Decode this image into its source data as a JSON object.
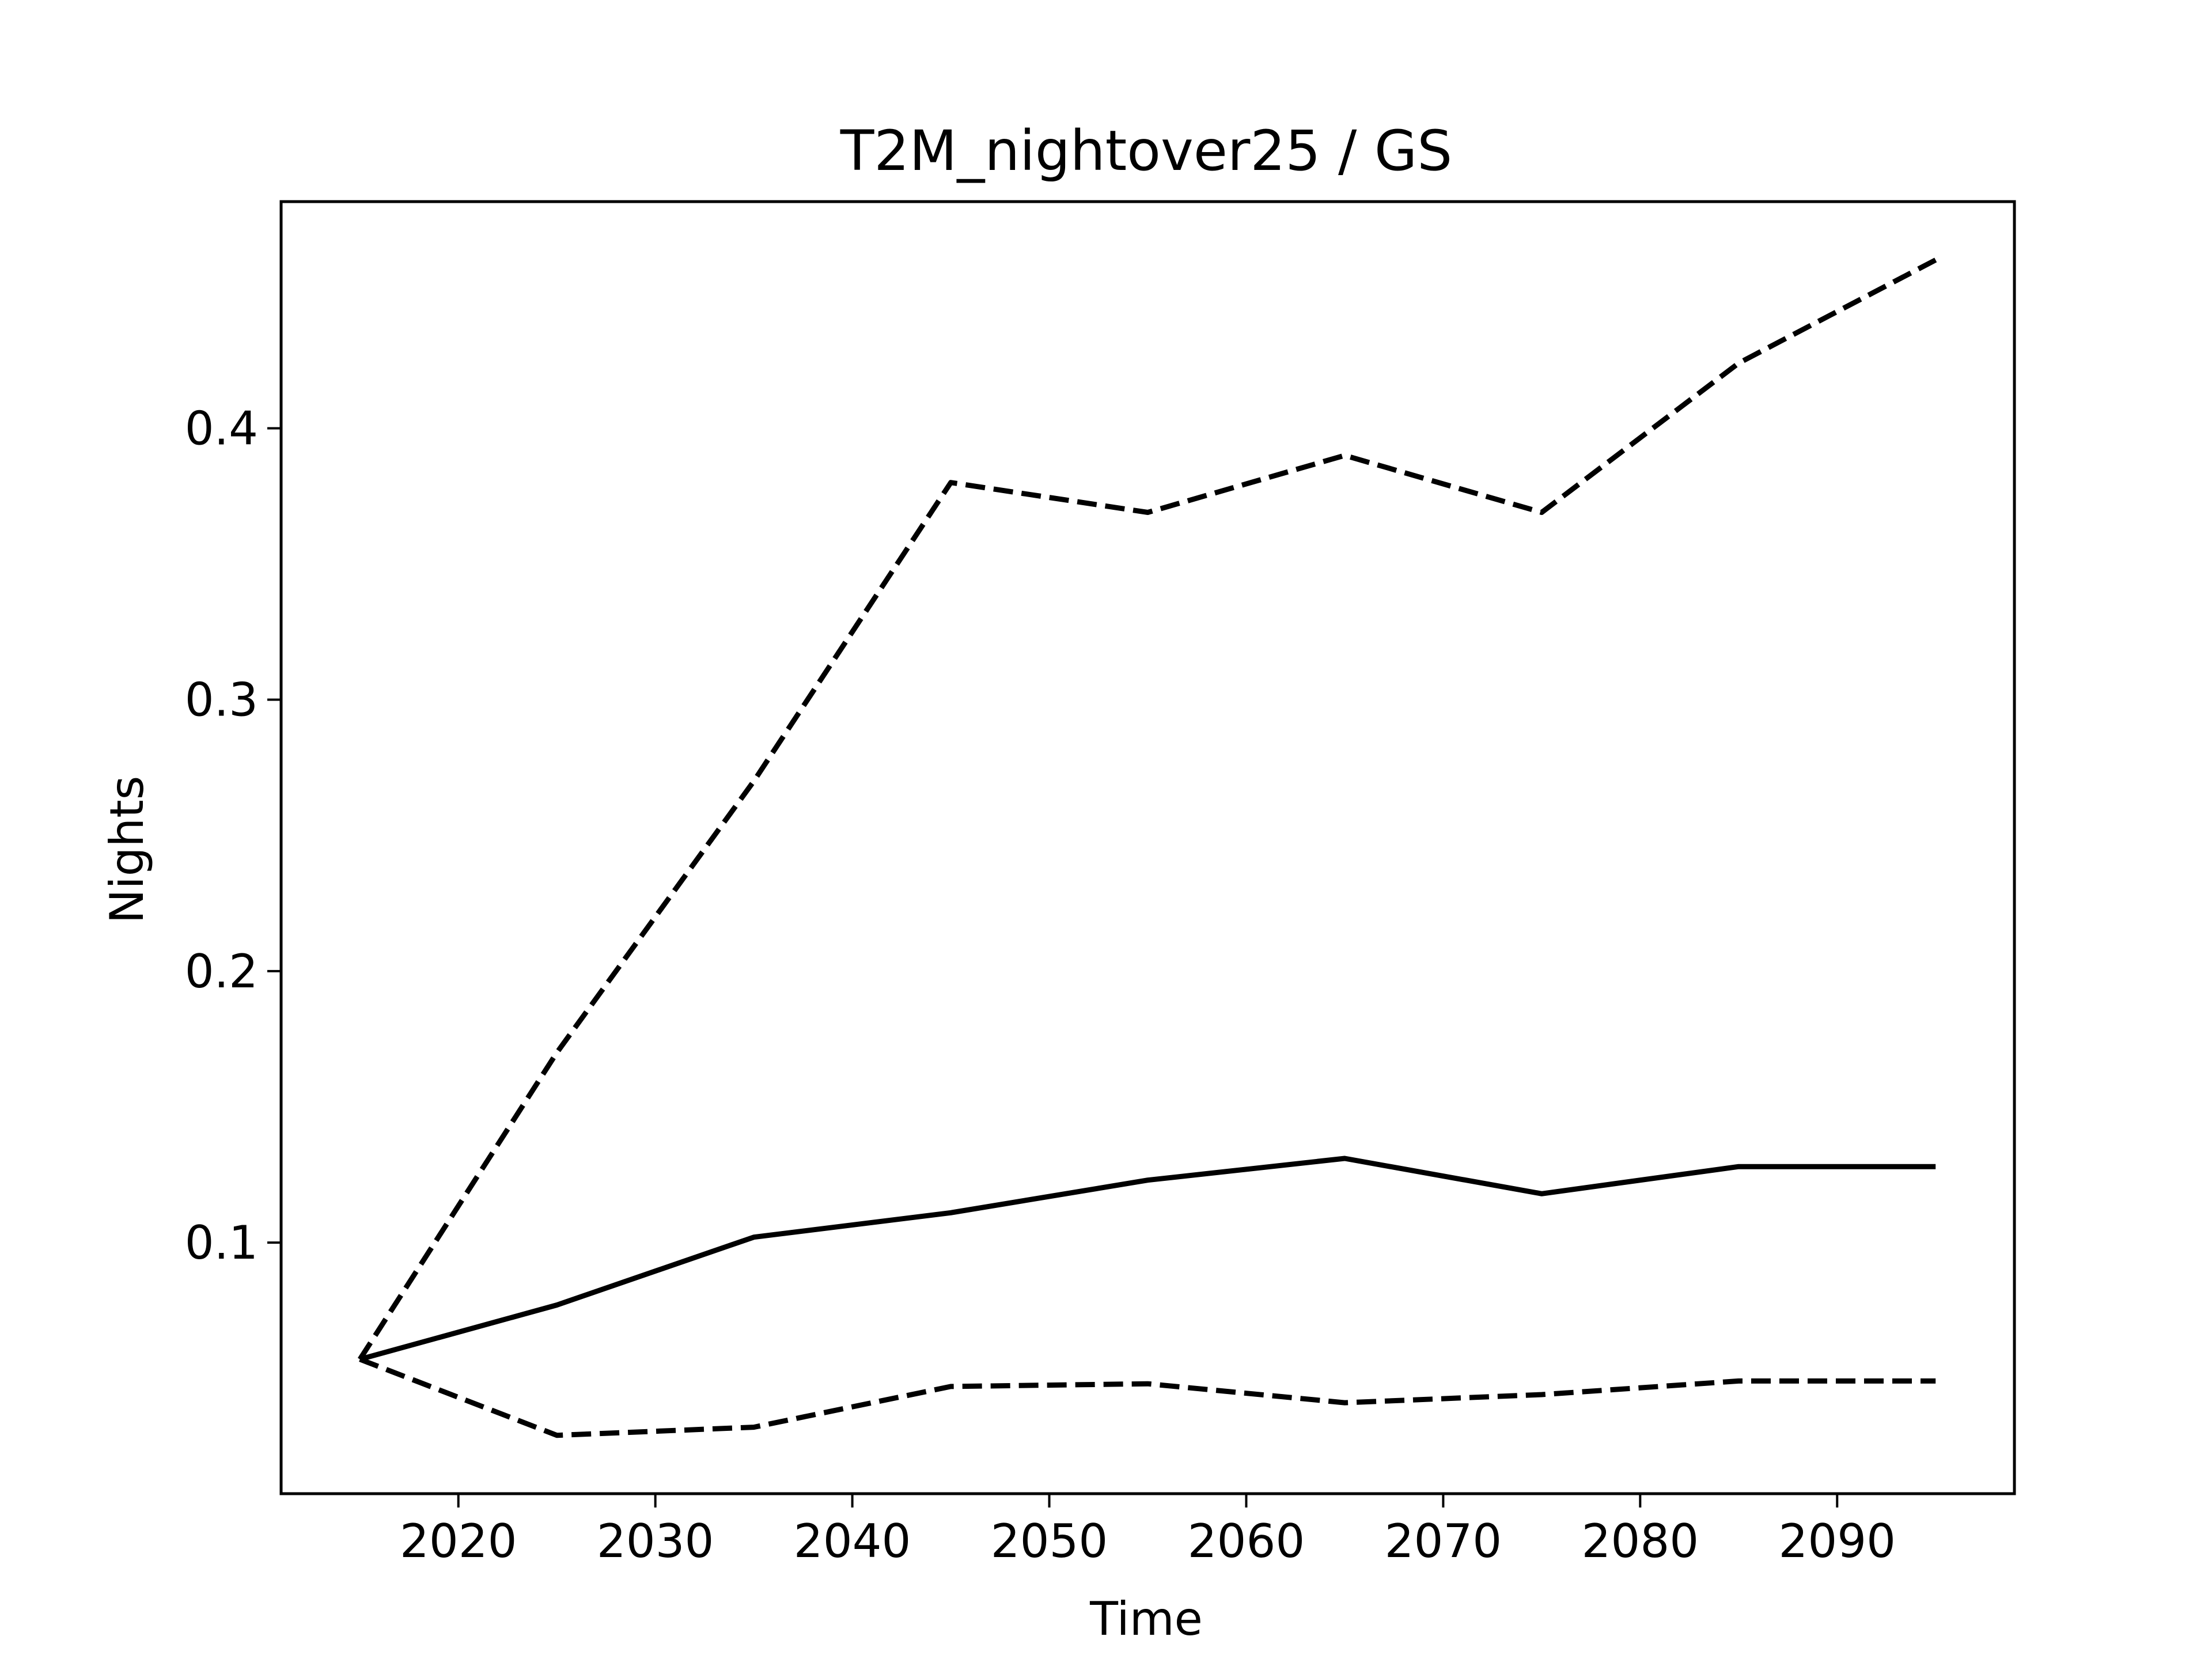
{
  "chart_data": {
    "type": "line",
    "title": "T2M_nightover25 / GS",
    "xlabel": "Time",
    "ylabel": "Nights",
    "xlim": [
      2011,
      2099
    ],
    "ylim": [
      0.0075,
      0.4835
    ],
    "xticks": [
      2020,
      2030,
      2040,
      2050,
      2060,
      2070,
      2080,
      2090
    ],
    "yticks": [
      0.1,
      0.2,
      0.3,
      0.4
    ],
    "ytick_labels": [
      "0.1",
      "0.2",
      "0.3",
      "0.4"
    ],
    "grid": false,
    "x": [
      2015,
      2025,
      2035,
      2045,
      2055,
      2065,
      2075,
      2085,
      2095
    ],
    "series": [
      {
        "style": "dashed",
        "color": "#000000",
        "values": [
          0.057,
          0.17,
          0.27,
          0.38,
          0.369,
          0.39,
          0.369,
          0.424,
          0.462
        ]
      },
      {
        "style": "solid",
        "color": "#000000",
        "values": [
          0.057,
          0.077,
          0.102,
          0.111,
          0.123,
          0.131,
          0.118,
          0.128,
          0.128
        ]
      },
      {
        "style": "dashed",
        "color": "#000000",
        "values": [
          0.057,
          0.029,
          0.032,
          0.047,
          0.048,
          0.041,
          0.044,
          0.049,
          0.049
        ]
      }
    ]
  }
}
